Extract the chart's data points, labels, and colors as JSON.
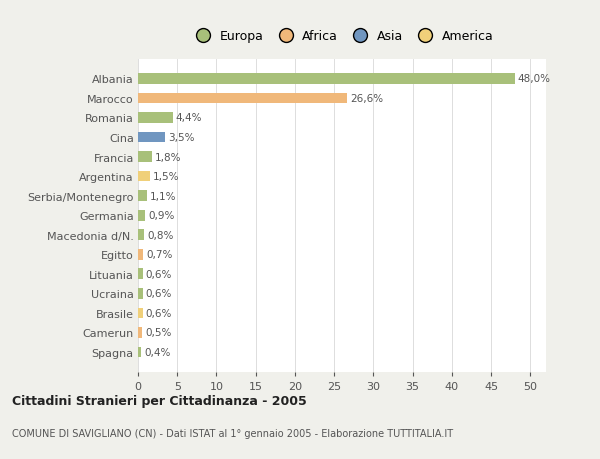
{
  "countries": [
    "Albania",
    "Marocco",
    "Romania",
    "Cina",
    "Francia",
    "Argentina",
    "Serbia/Montenegro",
    "Germania",
    "Macedonia d/N.",
    "Egitto",
    "Lituania",
    "Ucraina",
    "Brasile",
    "Camerun",
    "Spagna"
  ],
  "values": [
    48.0,
    26.6,
    4.4,
    3.5,
    1.8,
    1.5,
    1.1,
    0.9,
    0.8,
    0.7,
    0.6,
    0.6,
    0.6,
    0.5,
    0.4
  ],
  "labels": [
    "48,0%",
    "26,6%",
    "4,4%",
    "3,5%",
    "1,8%",
    "1,5%",
    "1,1%",
    "0,9%",
    "0,8%",
    "0,7%",
    "0,6%",
    "0,6%",
    "0,6%",
    "0,5%",
    "0,4%"
  ],
  "colors": [
    "#a8c07a",
    "#f0b87a",
    "#a8c07a",
    "#7096c0",
    "#a8c07a",
    "#f0d07a",
    "#a8c07a",
    "#a8c07a",
    "#a8c07a",
    "#f0b87a",
    "#a8c07a",
    "#a8c07a",
    "#f0d07a",
    "#f0b87a",
    "#a8c07a"
  ],
  "legend_labels": [
    "Europa",
    "Africa",
    "Asia",
    "America"
  ],
  "legend_colors": [
    "#a8c07a",
    "#f0b87a",
    "#7096c0",
    "#f0d07a"
  ],
  "xlim": [
    0,
    52
  ],
  "xticks": [
    0,
    5,
    10,
    15,
    20,
    25,
    30,
    35,
    40,
    45,
    50
  ],
  "title": "Cittadini Stranieri per Cittadinanza - 2005",
  "subtitle": "COMUNE DI SAVIGLIANO (CN) - Dati ISTAT al 1° gennaio 2005 - Elaborazione TUTTITALIA.IT",
  "bg_color": "#f0f0eb",
  "plot_bg_color": "#ffffff"
}
